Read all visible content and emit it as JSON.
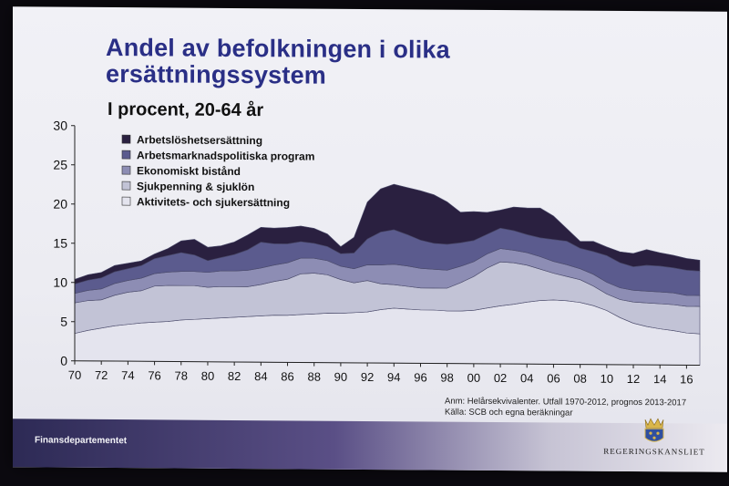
{
  "title_line1": "Andel av befolkningen i olika",
  "title_line2": "ersättningssystem",
  "subtitle": "I procent, 20-64 år",
  "note_line1": "Anm: Helårsekvivalenter. Utfall 1970-2012, prognos 2013-2017",
  "note_line2": "Källa: SCB och egna beräkningar",
  "department": "Finansdepartementet",
  "logo_text": "REGERINGSKANSLIET",
  "icons": [
    "crown-emblem-icon"
  ],
  "chart_data": {
    "type": "area",
    "stacked": true,
    "x": [
      1970,
      1971,
      1972,
      1973,
      1974,
      1975,
      1976,
      1977,
      1978,
      1979,
      1980,
      1981,
      1982,
      1983,
      1984,
      1985,
      1986,
      1987,
      1988,
      1989,
      1990,
      1991,
      1992,
      1993,
      1994,
      1995,
      1996,
      1997,
      1998,
      1999,
      2000,
      2001,
      2002,
      2003,
      2004,
      2005,
      2006,
      2007,
      2008,
      2009,
      2010,
      2011,
      2012,
      2013,
      2014,
      2015,
      2016,
      2017
    ],
    "x_tick_labels": [
      "70",
      "72",
      "74",
      "76",
      "78",
      "80",
      "82",
      "84",
      "86",
      "88",
      "90",
      "92",
      "94",
      "96",
      "98",
      "00",
      "02",
      "04",
      "06",
      "08",
      "10",
      "12",
      "14",
      "16"
    ],
    "x_tick_years": [
      1970,
      1972,
      1974,
      1976,
      1978,
      1980,
      1982,
      1984,
      1986,
      1988,
      1990,
      1992,
      1994,
      1996,
      1998,
      2000,
      2002,
      2004,
      2006,
      2008,
      2010,
      2012,
      2014,
      2016
    ],
    "ylim": [
      0,
      30
    ],
    "y_ticks": [
      0,
      5,
      10,
      15,
      20,
      25,
      30
    ],
    "grid": false,
    "legend_position": "top-left",
    "series": [
      {
        "name": "Aktivitets- och sjukersättning",
        "color": "#e4e4ee",
        "values": [
          3.5,
          3.9,
          4.2,
          4.5,
          4.7,
          4.9,
          5.0,
          5.1,
          5.3,
          5.4,
          5.5,
          5.6,
          5.7,
          5.8,
          5.9,
          6.0,
          6.0,
          6.1,
          6.2,
          6.3,
          6.3,
          6.4,
          6.5,
          6.8,
          7.0,
          6.9,
          6.8,
          6.8,
          6.7,
          6.7,
          6.8,
          7.1,
          7.4,
          7.6,
          7.9,
          8.1,
          8.2,
          8.1,
          7.9,
          7.5,
          6.9,
          6.0,
          5.3,
          4.9,
          4.6,
          4.4,
          4.1,
          4.0
        ]
      },
      {
        "name": "Sjukpenning & sjuklön",
        "color": "#c2c3d6",
        "values": [
          3.9,
          3.8,
          3.6,
          3.9,
          4.1,
          4.1,
          4.6,
          4.6,
          4.4,
          4.3,
          4.0,
          4.0,
          3.9,
          3.8,
          4.0,
          4.3,
          4.6,
          5.2,
          5.2,
          4.9,
          4.3,
          3.8,
          4.0,
          3.3,
          3.0,
          2.9,
          2.8,
          2.8,
          2.9,
          3.6,
          4.3,
          5.1,
          5.6,
          5.3,
          4.7,
          4.0,
          3.4,
          3.1,
          2.9,
          2.5,
          2.1,
          2.3,
          2.7,
          3.0,
          3.2,
          3.3,
          3.4,
          3.5
        ]
      },
      {
        "name": "Ekonomiskt bistånd",
        "color": "#8d8db4",
        "values": [
          1.2,
          1.3,
          1.4,
          1.5,
          1.5,
          1.6,
          1.6,
          1.7,
          1.8,
          1.8,
          1.9,
          2.0,
          2.0,
          2.1,
          2.1,
          2.1,
          2.1,
          2.0,
          1.9,
          1.8,
          1.7,
          1.8,
          2.0,
          2.4,
          2.6,
          2.6,
          2.5,
          2.4,
          2.3,
          2.1,
          1.9,
          1.8,
          1.7,
          1.6,
          1.6,
          1.6,
          1.5,
          1.5,
          1.4,
          1.5,
          1.5,
          1.5,
          1.5,
          1.5,
          1.5,
          1.5,
          1.4,
          1.4
        ]
      },
      {
        "name": "Arbetsmarknadspolitiska program",
        "color": "#5b5b8e",
        "values": [
          1.2,
          1.3,
          1.4,
          1.5,
          1.5,
          1.6,
          1.9,
          2.1,
          2.4,
          2.1,
          1.5,
          1.7,
          2.1,
          2.6,
          3.3,
          2.7,
          2.4,
          2.1,
          1.9,
          1.8,
          1.6,
          2.0,
          3.3,
          4.2,
          4.4,
          4.0,
          3.6,
          3.3,
          3.3,
          3.0,
          2.7,
          2.5,
          2.6,
          2.5,
          2.3,
          2.4,
          2.8,
          3.0,
          2.6,
          2.9,
          3.4,
          3.2,
          3.0,
          3.3,
          3.3,
          3.2,
          3.2,
          3.1
        ]
      },
      {
        "name": "Arbetslöshetsersättning",
        "color": "#2a2040",
        "values": [
          0.6,
          0.7,
          0.7,
          0.8,
          0.7,
          0.6,
          0.6,
          0.9,
          1.5,
          2.0,
          1.7,
          1.5,
          1.6,
          1.9,
          1.9,
          2.0,
          2.1,
          2.0,
          1.9,
          1.6,
          0.9,
          2.0,
          4.7,
          5.5,
          5.8,
          6.0,
          6.3,
          6.2,
          5.4,
          3.9,
          3.7,
          2.8,
          2.3,
          3.0,
          3.4,
          3.8,
          3.0,
          1.6,
          0.9,
          1.3,
          1.1,
          1.4,
          1.7,
          2.0,
          1.7,
          1.6,
          1.5,
          1.4
        ]
      }
    ]
  }
}
